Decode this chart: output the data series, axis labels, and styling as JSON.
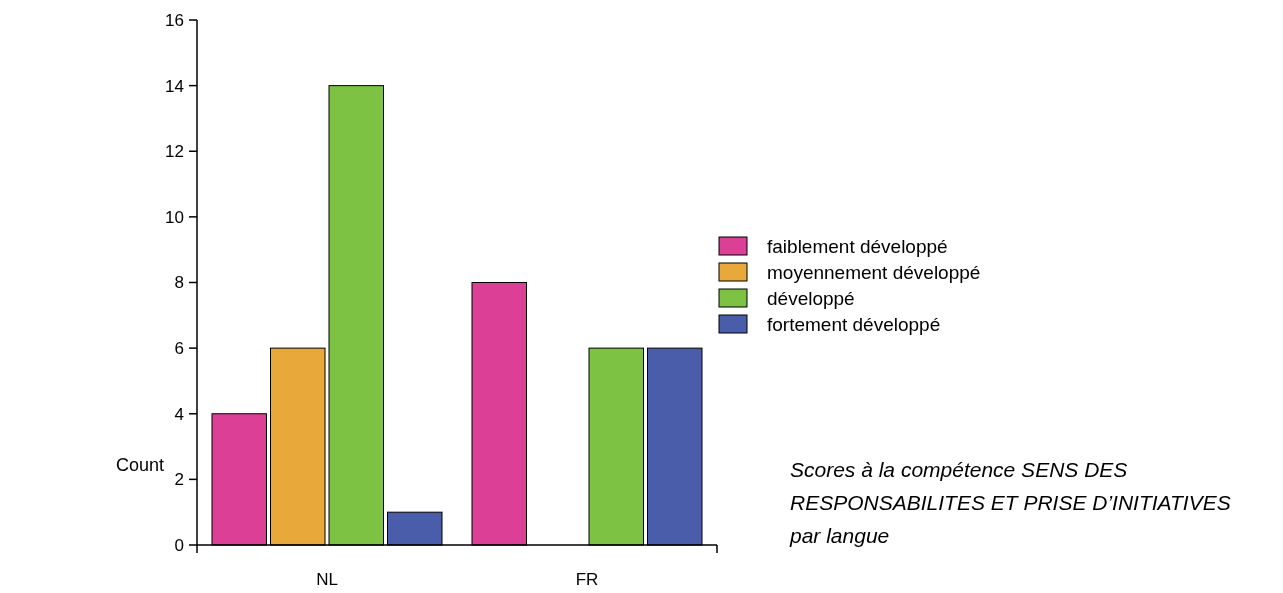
{
  "chart_data": {
    "type": "bar",
    "title": "Scores à la compétence SENS DES RESPONSABILITES ET PRISE D’INITIATIVES par langue",
    "ylabel": "Count",
    "categories": [
      "NL",
      "FR"
    ],
    "series": [
      {
        "name": "faiblement développé",
        "color": "#db3f96",
        "values": [
          4,
          8
        ]
      },
      {
        "name": "moyennement développé",
        "color": "#e8a83a",
        "values": [
          6,
          0
        ]
      },
      {
        "name": "développé",
        "color": "#7dc242",
        "values": [
          14,
          6
        ]
      },
      {
        "name": "fortement développé",
        "color": "#4a5dab",
        "values": [
          1,
          6
        ]
      }
    ],
    "ylim": [
      0,
      16
    ],
    "yticks": [
      0,
      2,
      4,
      6,
      8,
      10,
      12,
      14,
      16
    ],
    "grid": false,
    "legend": "right"
  }
}
